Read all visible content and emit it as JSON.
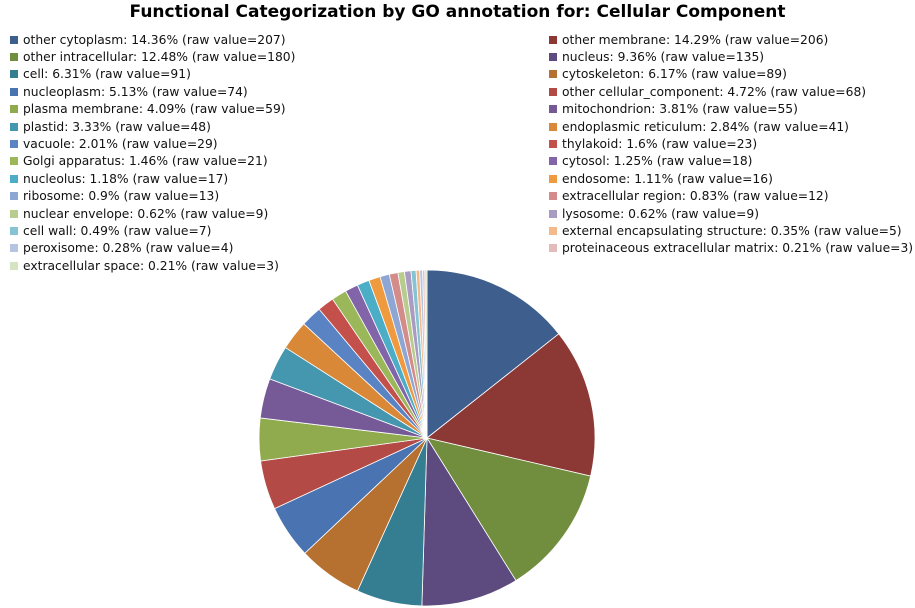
{
  "chart_data": {
    "type": "pie",
    "title": "Functional Categorization by GO annotation for: Cellular Component",
    "slices": [
      {
        "category": "other cytoplasm",
        "percent": 14.36,
        "value": 207,
        "label": "other cytoplasm: 14.36% (raw value=207)",
        "color": "#3e5f8e"
      },
      {
        "category": "other membrane",
        "percent": 14.29,
        "value": 206,
        "label": "other membrane: 14.29% (raw value=206)",
        "color": "#8c3936"
      },
      {
        "category": "other intracellular",
        "percent": 12.48,
        "value": 180,
        "label": "other intracellular:  12.48% (raw value=180)",
        "color": "#718e3e"
      },
      {
        "category": "nucleus",
        "percent": 9.36,
        "value": 135,
        "label": "nucleus: 9.36% (raw value=135)",
        "color": "#5d4a7e"
      },
      {
        "category": "cell",
        "percent": 6.31,
        "value": 91,
        "label": "cell: 6.31% (raw value=91)",
        "color": "#357d91"
      },
      {
        "category": "cytoskeleton",
        "percent": 6.17,
        "value": 89,
        "label": "cytoskeleton: 6.17% (raw value=89)",
        "color": "#b6702f"
      },
      {
        "category": "nucleoplasm",
        "percent": 5.13,
        "value": 74,
        "label": "nucleoplasm: 5.13%  (raw value=74)",
        "color": "#4a73b2"
      },
      {
        "category": "other cellular_component",
        "percent": 4.72,
        "value": 68,
        "label": "other cellular_component: 4.72% (raw value=68)",
        "color": "#b44a46"
      },
      {
        "category": "plasma membrane",
        "percent": 4.09,
        "value": 59,
        "label": "plasma membrane: 4.09% (raw value=59)",
        "color": "#8fab4e"
      },
      {
        "category": "mitochondrion",
        "percent": 3.81,
        "value": 55,
        "label": "mitochondrion: 3.81% (raw value=55)",
        "color": "#755a97"
      },
      {
        "category": "plastid",
        "percent": 3.33,
        "value": 48,
        "label": "plastid: 3.33% (raw value=48)",
        "color": "#4497ae"
      },
      {
        "category": "endoplasmic reticulum",
        "percent": 2.84,
        "value": 41,
        "label": "endoplasmic reticulum: 2.84% (raw value=41)",
        "color": "#d98837"
      },
      {
        "category": "vacuole",
        "percent": 2.01,
        "value": 29,
        "label": "vacuole: 2.01% (raw value=29)",
        "color": "#5a83c4"
      },
      {
        "category": "thylakoid",
        "percent": 1.6,
        "value": 23,
        "label": "thylakoid: 1.6% (raw value=23)",
        "color": "#c4504c"
      },
      {
        "category": "Golgi apparatus",
        "percent": 1.46,
        "value": 21,
        "label": "Golgi apparatus: 1.46% (raw value=21)",
        "color": "#9ab85a"
      },
      {
        "category": "cytosol",
        "percent": 1.25,
        "value": 18,
        "label": "cytosol: 1.25% (raw value=18)",
        "color": "#8264a8"
      },
      {
        "category": "nucleolus",
        "percent": 1.18,
        "value": 17,
        "label": "nucleolus: 1.18% (raw value=17)",
        "color": "#4badc6"
      },
      {
        "category": "endosome",
        "percent": 1.11,
        "value": 16,
        "label": "endosome: 1.11% (raw value=16)",
        "color": "#ef9a3f"
      },
      {
        "category": "ribosome",
        "percent": 0.9,
        "value": 13,
        "label": "ribosome: 0.9% (raw value=13)",
        "color": "#8ea6d4"
      },
      {
        "category": "extracellular region",
        "percent": 0.83,
        "value": 12,
        "label": "extracellular region: 0.83% (raw value=12)",
        "color": "#d48c8a"
      },
      {
        "category": "nuclear envelope",
        "percent": 0.62,
        "value": 9,
        "label": "nuclear envelope: 0.62% (raw value=9)",
        "color": "#b8cc8e"
      },
      {
        "category": "lysosome",
        "percent": 0.62,
        "value": 9,
        "label": "lysosome: 0.62% (raw value=9)",
        "color": "#a99bc2"
      },
      {
        "category": "cell wall",
        "percent": 0.49,
        "value": 7,
        "label": "cell wall: 0.49% (raw value=7)",
        "color": "#86c4d4"
      },
      {
        "category": "external encapsulating structure",
        "percent": 0.35,
        "value": 5,
        "label": "external encapsulating structure: 0.35% (raw value=5)",
        "color": "#f4b98a"
      },
      {
        "category": "peroxisome",
        "percent": 0.28,
        "value": 4,
        "label": "peroxisome: 0.28% (raw value=4)",
        "color": "#b6c4e2"
      },
      {
        "category": "proteinaceous extracellular matrix",
        "percent": 0.21,
        "value": 3,
        "label": "proteinaceous extracellular matrix: 0.21% (raw value=3)",
        "color": "#e2bcbb"
      },
      {
        "category": "extracellular space",
        "percent": 0.21,
        "value": 3,
        "label": "extracellular space: 0.21% (raw value=3)",
        "color": "#d5e3c0"
      }
    ],
    "legend": {
      "left": [
        0,
        2,
        4,
        6,
        8,
        10,
        12,
        14,
        16,
        18,
        20,
        22,
        24,
        26
      ],
      "right": [
        1,
        3,
        5,
        7,
        9,
        11,
        13,
        15,
        17,
        19,
        21,
        23,
        25
      ]
    },
    "start_angle_deg": 0,
    "direction": "clockwise"
  }
}
